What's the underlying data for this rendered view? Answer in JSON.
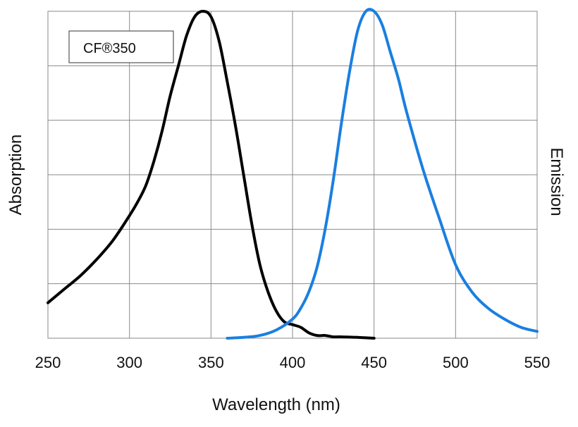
{
  "chart_data": {
    "type": "line",
    "legend_box_text": "CF®350",
    "xlabel": "Wavelength (nm)",
    "ylabel_left": "Absorption",
    "ylabel_right": "Emission",
    "xlim": [
      250,
      550
    ],
    "ylim": [
      0,
      1.2
    ],
    "x_ticks": [
      "250",
      "300",
      "350",
      "400",
      "450",
      "500",
      "550"
    ],
    "grid": true,
    "colors": {
      "absorption": "#000000",
      "emission": "#1a7fe0",
      "grid": "#8a8a8a"
    },
    "series": [
      {
        "key": "absorption",
        "x": [
          250,
          260,
          270,
          280,
          290,
          300,
          305,
          310,
          315,
          320,
          325,
          330,
          335,
          340,
          345,
          350,
          355,
          360,
          365,
          370,
          375,
          380,
          385,
          390,
          395,
          400,
          405,
          410,
          415,
          420,
          425,
          430,
          440,
          450
        ],
        "y": [
          0.13,
          0.18,
          0.23,
          0.29,
          0.36,
          0.45,
          0.5,
          0.56,
          0.65,
          0.76,
          0.89,
          1.0,
          1.11,
          1.18,
          1.2,
          1.18,
          1.09,
          0.94,
          0.78,
          0.6,
          0.42,
          0.27,
          0.17,
          0.1,
          0.06,
          0.05,
          0.04,
          0.02,
          0.01,
          0.01,
          0.005,
          0.005,
          0.003,
          0.0
        ]
      },
      {
        "key": "emission",
        "x": [
          360,
          370,
          380,
          390,
          400,
          405,
          410,
          415,
          420,
          425,
          430,
          435,
          440,
          445,
          450,
          455,
          460,
          465,
          470,
          480,
          490,
          500,
          510,
          520,
          530,
          540,
          550
        ],
        "y": [
          0.0,
          0.003,
          0.01,
          0.03,
          0.07,
          0.11,
          0.17,
          0.26,
          0.4,
          0.58,
          0.79,
          0.98,
          1.13,
          1.2,
          1.2,
          1.15,
          1.05,
          0.95,
          0.83,
          0.62,
          0.44,
          0.27,
          0.17,
          0.11,
          0.07,
          0.04,
          0.025
        ]
      }
    ]
  }
}
